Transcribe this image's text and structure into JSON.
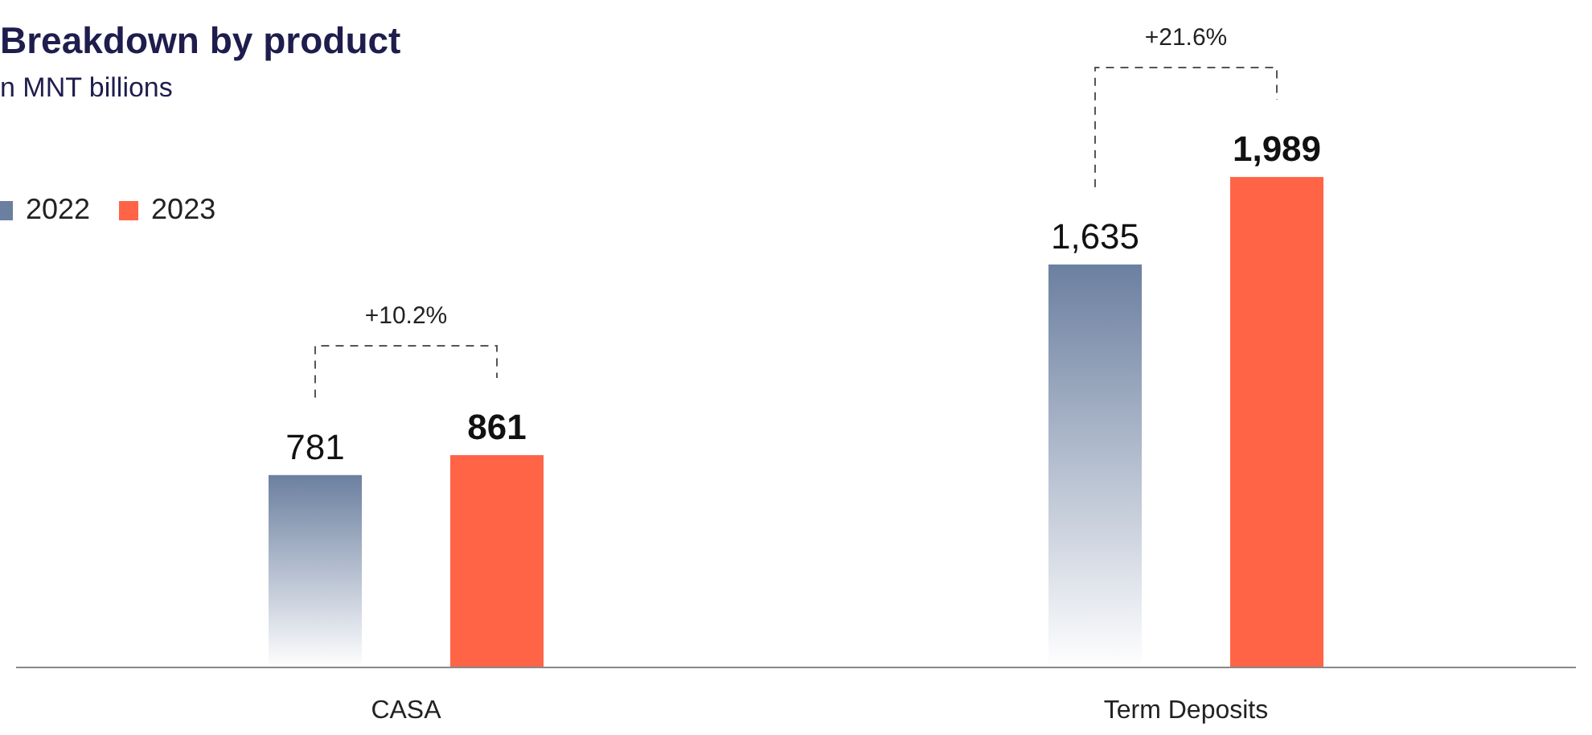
{
  "chart_data": {
    "type": "bar",
    "title": "Breakdown by product",
    "subtitle": "n MNT billions",
    "categories": [
      "CASA",
      "Term Deposits"
    ],
    "series": [
      {
        "name": "2022",
        "color": "#6b7fa0",
        "values": [
          781,
          1635
        ],
        "value_labels": [
          "781",
          "1,635"
        ]
      },
      {
        "name": "2023",
        "color": "#ff6446",
        "values": [
          861,
          1989
        ],
        "value_labels": [
          "861",
          "1,989"
        ]
      }
    ],
    "legend": "top left",
    "grid": false,
    "annotations": [
      "+10.2%",
      "+21.6%"
    ]
  }
}
